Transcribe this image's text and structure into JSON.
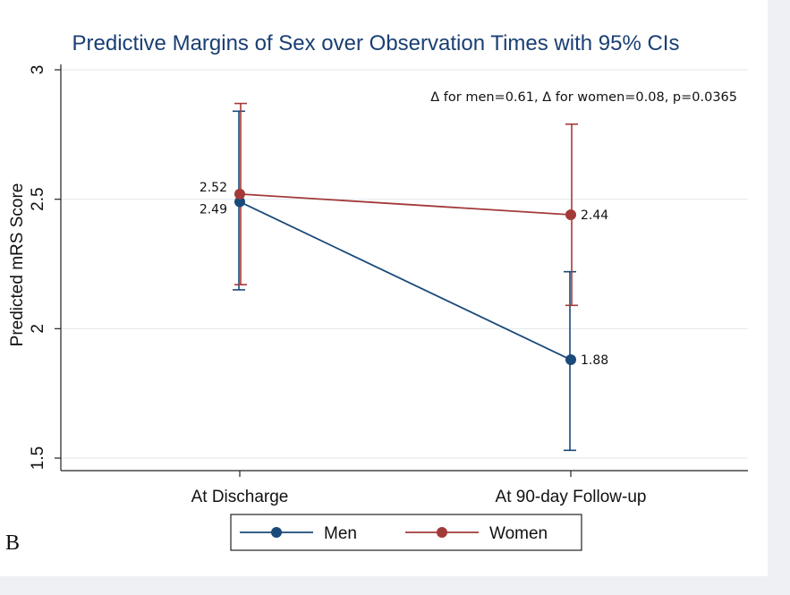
{
  "panel_label": "B",
  "chart_data": {
    "type": "line",
    "title": "Predictive Margins of Sex over Observation Times with 95% CIs",
    "xlabel": "",
    "ylabel": "Predicted mRS Score",
    "categories": [
      "At Discharge",
      "At 90-day Follow-up"
    ],
    "ylim": [
      1.5,
      3
    ],
    "yticks": [
      1.5,
      2,
      2.5,
      3
    ],
    "ytick_labels": [
      "1.5",
      "2",
      "2.5",
      "3"
    ],
    "grid": true,
    "annotation": "Δ for men=0.61, Δ for women=0.08, p=0.0365",
    "legend_position": "bottom",
    "series": [
      {
        "name": "Men",
        "color": "#1a4a7a",
        "values": [
          2.49,
          1.88
        ],
        "ci_low": [
          2.15,
          1.53
        ],
        "ci_high": [
          2.84,
          2.22
        ],
        "value_labels": [
          "2.49",
          "1.88"
        ]
      },
      {
        "name": "Women",
        "color": "#a33a3a",
        "values": [
          2.52,
          2.44
        ],
        "ci_low": [
          2.17,
          2.09
        ],
        "ci_high": [
          2.87,
          2.79
        ],
        "value_labels": [
          "2.52",
          "2.44"
        ]
      }
    ]
  }
}
